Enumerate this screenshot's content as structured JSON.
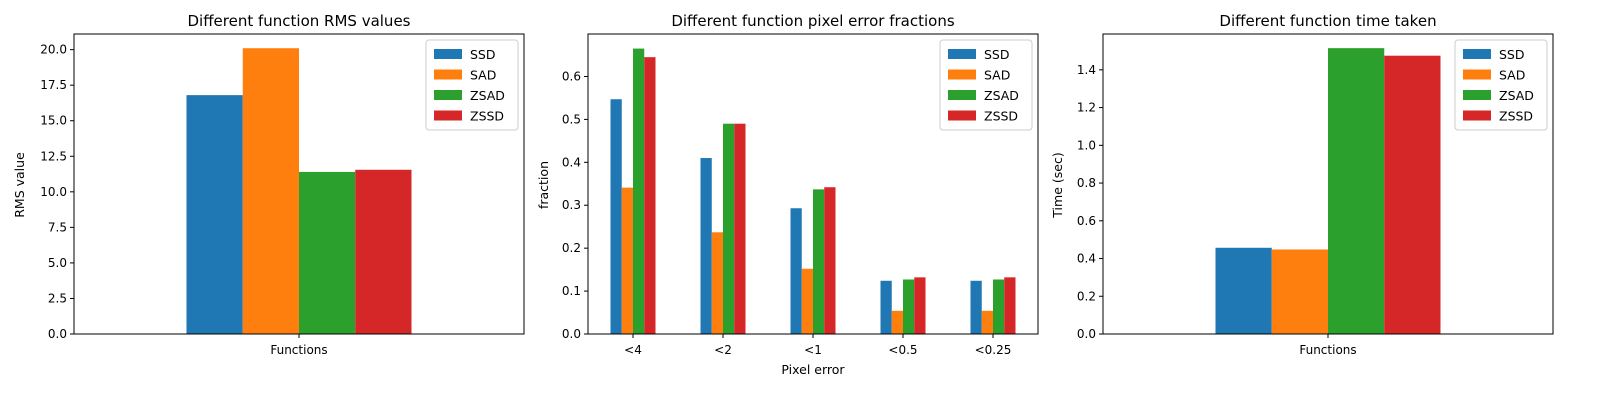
{
  "colors": {
    "SSD": "#1f77b4",
    "SAD": "#ff7f0e",
    "ZSAD": "#2ca02c",
    "ZSSD": "#d62728"
  },
  "chart_data": [
    {
      "type": "bar",
      "title": "Different function RMS values",
      "xlabel": "",
      "ylabel": "RMS value",
      "categories": [
        "Functions"
      ],
      "series": [
        {
          "name": "SSD",
          "values": [
            16.8
          ]
        },
        {
          "name": "SAD",
          "values": [
            20.1
          ]
        },
        {
          "name": "ZSAD",
          "values": [
            11.4
          ]
        },
        {
          "name": "ZSSD",
          "values": [
            11.55
          ]
        }
      ],
      "ylim": [
        0,
        21.1
      ],
      "yticks": [
        0.0,
        2.5,
        5.0,
        7.5,
        10.0,
        12.5,
        15.0,
        17.5,
        20.0
      ],
      "ytick_labels": [
        "0.0",
        "2.5",
        "5.0",
        "7.5",
        "10.0",
        "12.5",
        "15.0",
        "17.5",
        "20.0"
      ],
      "grid": false,
      "legend": "top-right"
    },
    {
      "type": "bar",
      "title": "Different function pixel error fractions",
      "xlabel": "Pixel error",
      "ylabel": "fraction",
      "categories": [
        "<4",
        "<2",
        "<1",
        "<0.5",
        "<0.25"
      ],
      "series": [
        {
          "name": "SSD",
          "values": [
            0.547,
            0.41,
            0.293,
            0.124,
            0.124
          ]
        },
        {
          "name": "SAD",
          "values": [
            0.341,
            0.237,
            0.152,
            0.054,
            0.054
          ]
        },
        {
          "name": "ZSAD",
          "values": [
            0.665,
            0.49,
            0.337,
            0.127,
            0.127
          ]
        },
        {
          "name": "ZSSD",
          "values": [
            0.645,
            0.49,
            0.342,
            0.132,
            0.132
          ]
        }
      ],
      "ylim": [
        0,
        0.699
      ],
      "yticks": [
        0.0,
        0.1,
        0.2,
        0.3,
        0.4,
        0.5,
        0.6
      ],
      "ytick_labels": [
        "0.0",
        "0.1",
        "0.2",
        "0.3",
        "0.4",
        "0.5",
        "0.6"
      ],
      "grid": false,
      "legend": "top-right"
    },
    {
      "type": "bar",
      "title": "Different function time taken",
      "xlabel": "",
      "ylabel": "Time (sec)",
      "categories": [
        "Functions"
      ],
      "series": [
        {
          "name": "SSD",
          "values": [
            0.457
          ]
        },
        {
          "name": "SAD",
          "values": [
            0.448
          ]
        },
        {
          "name": "ZSAD",
          "values": [
            1.515
          ]
        },
        {
          "name": "ZSSD",
          "values": [
            1.475
          ]
        }
      ],
      "ylim": [
        0,
        1.59
      ],
      "yticks": [
        0.0,
        0.2,
        0.4,
        0.6,
        0.8,
        1.0,
        1.2,
        1.4
      ],
      "ytick_labels": [
        "0.0",
        "0.2",
        "0.4",
        "0.6",
        "0.8",
        "1.0",
        "1.2",
        "1.4"
      ],
      "grid": false,
      "legend": "top-right"
    }
  ]
}
